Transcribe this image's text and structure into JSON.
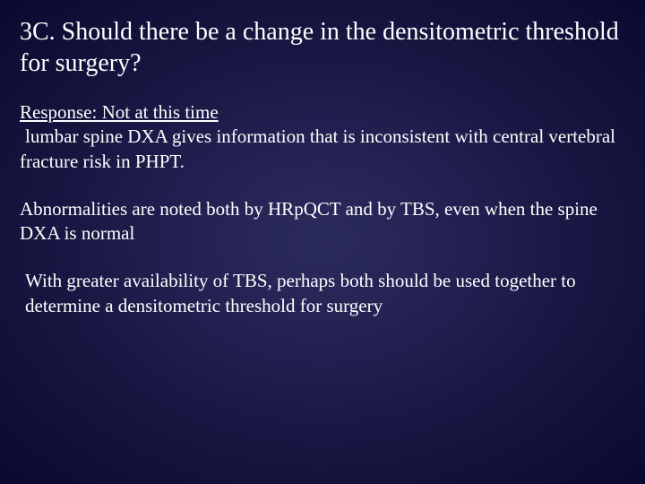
{
  "slide": {
    "background": {
      "type": "radial-gradient",
      "center_color": "#2c2b5d",
      "mid_color": "#222152",
      "outer_color": "#15143e",
      "edge_color": "#0a0930"
    },
    "title": {
      "text": "3C. Should there be a change in the densitometric threshold for surgery?",
      "fontsize": 28,
      "color": "#ffffff",
      "weight": "normal"
    },
    "body": {
      "fontsize": 21,
      "color": "#ffffff",
      "response_label": "Response: Not at this time",
      "response_underlined": true,
      "para1_cont": "lumbar spine DXA gives information that is inconsistent with central vertebral fracture risk in PHPT.",
      "para2": "Abnormalities are noted both by HRpQCT and by TBS, even when the spine DXA is normal",
      "para3": "With greater availability of TBS, perhaps both should be used together to determine a densitometric threshold for surgery"
    },
    "font_family": "Palatino Linotype, Book Antiqua, Palatino, Georgia, serif"
  }
}
